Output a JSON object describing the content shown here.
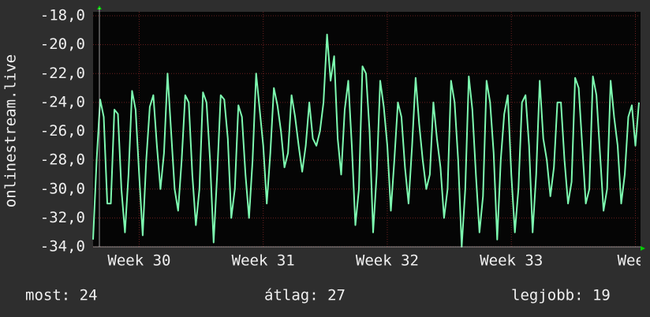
{
  "chart_data": {
    "type": "line",
    "y_label": "onlinestream.live",
    "ylim": [
      -34,
      -18
    ],
    "yticks": [
      {
        "value": -18,
        "label": "-18,0"
      },
      {
        "value": -20,
        "label": "-20,0"
      },
      {
        "value": -22,
        "label": "-22,0"
      },
      {
        "value": -24,
        "label": "-24,0"
      },
      {
        "value": -26,
        "label": "-26,0"
      },
      {
        "value": -28,
        "label": "-28,0"
      },
      {
        "value": -30,
        "label": "-30,0"
      },
      {
        "value": -32,
        "label": "-32,0"
      },
      {
        "value": -34,
        "label": "-34,0"
      }
    ],
    "xlim": [
      0,
      154
    ],
    "xticks": [
      {
        "value": 13,
        "label": "Week 30"
      },
      {
        "value": 48,
        "label": "Week 31"
      },
      {
        "value": 83,
        "label": "Week 32"
      },
      {
        "value": 118,
        "label": "Week 33"
      },
      {
        "value": 153,
        "label": "Week"
      }
    ],
    "grid": true,
    "series": [
      {
        "color": "#7dfab0",
        "values": [
          -33.5,
          -28,
          -23.8,
          -25,
          -31,
          -31,
          -24.5,
          -24.8,
          -30,
          -33,
          -29,
          -23.2,
          -24.5,
          -29,
          -33.2,
          -28,
          -24.3,
          -23.5,
          -27,
          -30,
          -27.5,
          -22,
          -26,
          -30,
          -31.5,
          -28,
          -23.5,
          -24,
          -29,
          -32.5,
          -30,
          -23.3,
          -24,
          -28,
          -33.7,
          -29,
          -23.5,
          -23.8,
          -26.5,
          -32,
          -30,
          -24.2,
          -25,
          -29,
          -32,
          -28,
          -22,
          -24.5,
          -27,
          -31,
          -27.5,
          -23,
          -24.2,
          -26,
          -28.5,
          -27.5,
          -23.5,
          -25,
          -27,
          -28.8,
          -27,
          -24,
          -26.5,
          -27,
          -26,
          -24,
          -19.3,
          -22.5,
          -20.8,
          -26.5,
          -29,
          -24.5,
          -22.5,
          -27,
          -32.5,
          -30,
          -21.5,
          -22,
          -26,
          -33,
          -29,
          -22.5,
          -24.3,
          -27,
          -31.5,
          -28,
          -24,
          -25,
          -28.5,
          -31,
          -27,
          -22.3,
          -25.5,
          -28,
          -30,
          -29,
          -24,
          -26.5,
          -28.5,
          -32,
          -30,
          -22.5,
          -24,
          -28,
          -34,
          -30,
          -22.2,
          -24.5,
          -29,
          -33,
          -30.5,
          -22.5,
          -24,
          -27.5,
          -33.5,
          -28,
          -24.8,
          -23.5,
          -29,
          -33,
          -30,
          -24,
          -23.5,
          -27,
          -33,
          -29,
          -22.5,
          -26.5,
          -28,
          -30.5,
          -28.5,
          -24,
          -24,
          -28,
          -31,
          -29.5,
          -22.3,
          -23,
          -27,
          -31,
          -30,
          -22.2,
          -23.5,
          -27.5,
          -31.5,
          -30,
          -22.5,
          -25,
          -27,
          -31,
          -29,
          -25,
          -24.2,
          -27,
          -24
        ]
      }
    ]
  },
  "footer": {
    "current": "most: 24",
    "average": "átlag: 27",
    "best": "legjobb: 19"
  }
}
